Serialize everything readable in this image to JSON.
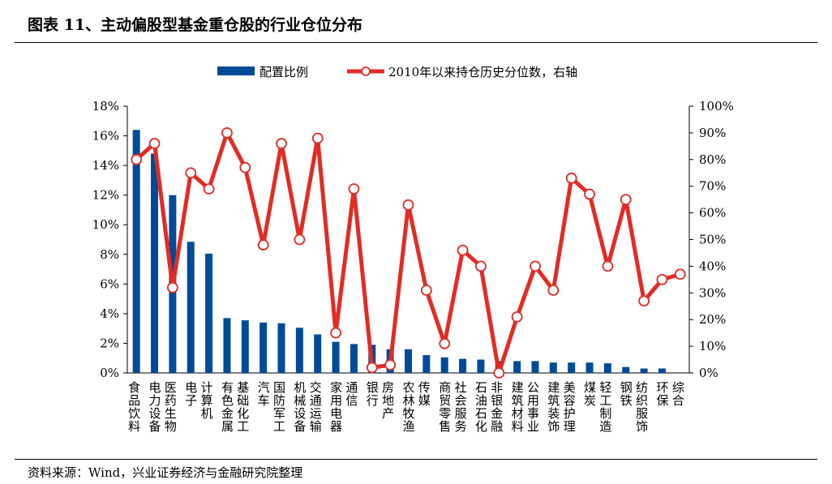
{
  "title": "图表 11、主动偏股型基金重仓股的行业仓位分布",
  "source": "资料来源：Wind，兴业证券经济与金融研究院整理",
  "chart_data": {
    "type": "bar+line",
    "categories": [
      "食品饮料",
      "电力设备",
      "医药生物",
      "电子",
      "计算机",
      "有色金属",
      "基础化工",
      "汽车",
      "国防军工",
      "机械设备",
      "交通运输",
      "家用电器",
      "通信",
      "银行",
      "房地产",
      "农林牧渔",
      "传媒",
      "商贸零售",
      "社会服务",
      "石油石化",
      "非银金融",
      "建筑材料",
      "公用事业",
      "建筑装饰",
      "美容护理",
      "煤炭",
      "轻工制造",
      "钢铁",
      "纺织服饰",
      "环保",
      "综合"
    ],
    "series": [
      {
        "name": "配置比例",
        "type": "bar",
        "axis": "left",
        "color": "#004b97",
        "values": [
          16.4,
          14.8,
          12.0,
          8.85,
          8.05,
          3.7,
          3.55,
          3.4,
          3.35,
          3.05,
          2.6,
          2.1,
          1.95,
          1.9,
          1.6,
          1.6,
          1.2,
          1.05,
          0.95,
          0.9,
          0.8,
          0.8,
          0.8,
          0.7,
          0.7,
          0.7,
          0.65,
          0.4,
          0.3,
          0.3,
          0
        ]
      },
      {
        "name": "2010年以来持仓历史分位数，右轴",
        "type": "line",
        "axis": "right",
        "color": "#e32b24",
        "values": [
          80,
          86,
          32,
          75,
          69,
          90,
          77,
          48,
          86,
          50,
          88,
          15,
          69,
          2,
          3,
          63,
          31,
          11,
          46,
          40,
          0,
          21,
          40,
          31,
          73,
          67,
          40,
          65,
          27,
          35,
          37
        ]
      }
    ],
    "left_axis": {
      "range": [
        0,
        18
      ],
      "ticks": [
        "0%",
        "2%",
        "4%",
        "6%",
        "8%",
        "10%",
        "12%",
        "14%",
        "16%",
        "18%"
      ]
    },
    "right_axis": {
      "range": [
        0,
        100
      ],
      "ticks": [
        "0%",
        "10%",
        "20%",
        "30%",
        "40%",
        "50%",
        "60%",
        "70%",
        "80%",
        "90%",
        "100%"
      ]
    },
    "legend_placement": "top",
    "grid": false
  }
}
